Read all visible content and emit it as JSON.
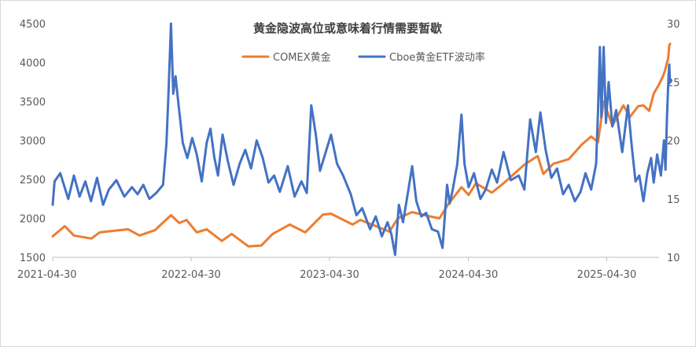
{
  "chart_data": {
    "type": "line",
    "title": "黄金隐波高位或意味着行情需要暂歇",
    "xlabel": "",
    "ylabel": "",
    "x_range": [
      "2021-04-30",
      "2025-09-15"
    ],
    "x_tick_labels": [
      "2021-04-30",
      "2022-04-30",
      "2023-04-30",
      "2024-04-30",
      "2025-04-30"
    ],
    "y_left": {
      "min": 1500,
      "max": 4500,
      "ticks": [
        1500,
        2000,
        2500,
        3000,
        3500,
        4000,
        4500
      ]
    },
    "y_right": {
      "min": 10,
      "max": 30,
      "ticks": [
        10,
        15,
        20,
        25,
        30
      ]
    },
    "grid": false,
    "legend_position": "top-center",
    "series": [
      {
        "name": "COMEX黄金",
        "axis": "left",
        "color": "#ED7D31",
        "points": [
          [
            "2021-04-30",
            1770
          ],
          [
            "2021-06-01",
            1900
          ],
          [
            "2021-06-25",
            1780
          ],
          [
            "2021-08-10",
            1740
          ],
          [
            "2021-09-01",
            1820
          ],
          [
            "2021-11-15",
            1860
          ],
          [
            "2021-12-15",
            1780
          ],
          [
            "2022-01-25",
            1850
          ],
          [
            "2022-03-08",
            2040
          ],
          [
            "2022-03-30",
            1940
          ],
          [
            "2022-04-18",
            1980
          ],
          [
            "2022-05-15",
            1820
          ],
          [
            "2022-06-10",
            1860
          ],
          [
            "2022-07-20",
            1710
          ],
          [
            "2022-08-15",
            1800
          ],
          [
            "2022-09-28",
            1640
          ],
          [
            "2022-11-01",
            1650
          ],
          [
            "2022-12-01",
            1800
          ],
          [
            "2023-01-15",
            1920
          ],
          [
            "2023-02-25",
            1820
          ],
          [
            "2023-04-13",
            2050
          ],
          [
            "2023-05-04",
            2060
          ],
          [
            "2023-06-30",
            1920
          ],
          [
            "2023-07-20",
            1980
          ],
          [
            "2023-08-20",
            1920
          ],
          [
            "2023-10-05",
            1830
          ],
          [
            "2023-10-27",
            2000
          ],
          [
            "2023-12-04",
            2080
          ],
          [
            "2024-01-15",
            2030
          ],
          [
            "2024-02-14",
            2000
          ],
          [
            "2024-03-08",
            2180
          ],
          [
            "2024-04-12",
            2400
          ],
          [
            "2024-05-01",
            2300
          ],
          [
            "2024-05-20",
            2450
          ],
          [
            "2024-07-01",
            2330
          ],
          [
            "2024-08-01",
            2450
          ],
          [
            "2024-09-25",
            2690
          ],
          [
            "2024-10-30",
            2800
          ],
          [
            "2024-11-14",
            2570
          ],
          [
            "2024-12-10",
            2700
          ],
          [
            "2025-01-20",
            2760
          ],
          [
            "2025-02-24",
            2950
          ],
          [
            "2025-03-20",
            3050
          ],
          [
            "2025-04-07",
            2980
          ],
          [
            "2025-04-22",
            3500
          ],
          [
            "2025-05-15",
            3190
          ],
          [
            "2025-06-13",
            3450
          ],
          [
            "2025-06-30",
            3300
          ],
          [
            "2025-07-22",
            3440
          ],
          [
            "2025-08-05",
            3450
          ],
          [
            "2025-08-20",
            3380
          ],
          [
            "2025-09-01",
            3600
          ],
          [
            "2025-09-15",
            3720
          ],
          [
            "2025-09-25",
            3820
          ],
          [
            "2025-10-01",
            3900
          ],
          [
            "2025-10-06",
            4000
          ],
          [
            "2025-10-09",
            4050
          ],
          [
            "2025-10-12",
            4220
          ],
          [
            "2025-10-14",
            4240
          ]
        ]
      },
      {
        "name": "Cboe黄金ETF波动率",
        "axis": "right",
        "color": "#4472C4",
        "points": [
          [
            "2021-04-30",
            14.5
          ],
          [
            "2021-05-05",
            16.5
          ],
          [
            "2021-05-20",
            17.2
          ],
          [
            "2021-06-10",
            15.0
          ],
          [
            "2021-06-25",
            17.0
          ],
          [
            "2021-07-10",
            15.2
          ],
          [
            "2021-07-25",
            16.5
          ],
          [
            "2021-08-09",
            14.8
          ],
          [
            "2021-08-25",
            16.8
          ],
          [
            "2021-09-10",
            14.5
          ],
          [
            "2021-09-25",
            15.8
          ],
          [
            "2021-10-15",
            16.6
          ],
          [
            "2021-11-05",
            15.2
          ],
          [
            "2021-11-25",
            16.0
          ],
          [
            "2021-12-10",
            15.4
          ],
          [
            "2021-12-25",
            16.2
          ],
          [
            "2022-01-10",
            15.0
          ],
          [
            "2022-01-28",
            15.5
          ],
          [
            "2022-02-15",
            16.2
          ],
          [
            "2022-02-24",
            19.8
          ],
          [
            "2022-03-02",
            24.5
          ],
          [
            "2022-03-08",
            30.0
          ],
          [
            "2022-03-14",
            24.0
          ],
          [
            "2022-03-20",
            25.5
          ],
          [
            "2022-03-28",
            23.0
          ],
          [
            "2022-04-08",
            19.8
          ],
          [
            "2022-04-20",
            18.5
          ],
          [
            "2022-05-03",
            20.2
          ],
          [
            "2022-05-15",
            18.8
          ],
          [
            "2022-05-28",
            16.5
          ],
          [
            "2022-06-10",
            19.8
          ],
          [
            "2022-06-20",
            21.0
          ],
          [
            "2022-06-30",
            18.6
          ],
          [
            "2022-07-10",
            17.0
          ],
          [
            "2022-07-22",
            20.5
          ],
          [
            "2022-08-05",
            18.2
          ],
          [
            "2022-08-20",
            16.2
          ],
          [
            "2022-09-05",
            18.0
          ],
          [
            "2022-09-20",
            19.2
          ],
          [
            "2022-10-05",
            17.6
          ],
          [
            "2022-10-20",
            20.0
          ],
          [
            "2022-11-05",
            18.5
          ],
          [
            "2022-11-20",
            16.4
          ],
          [
            "2022-12-05",
            17.0
          ],
          [
            "2022-12-20",
            15.6
          ],
          [
            "2023-01-10",
            17.8
          ],
          [
            "2023-01-28",
            15.2
          ],
          [
            "2023-02-15",
            16.5
          ],
          [
            "2023-03-01",
            15.5
          ],
          [
            "2023-03-13",
            23.0
          ],
          [
            "2023-03-25",
            20.5
          ],
          [
            "2023-04-05",
            17.4
          ],
          [
            "2023-04-20",
            19.0
          ],
          [
            "2023-05-04",
            20.5
          ],
          [
            "2023-05-20",
            18.0
          ],
          [
            "2023-06-05",
            17.0
          ],
          [
            "2023-06-25",
            15.4
          ],
          [
            "2023-07-10",
            13.6
          ],
          [
            "2023-07-25",
            14.2
          ],
          [
            "2023-08-15",
            12.4
          ],
          [
            "2023-08-30",
            13.5
          ],
          [
            "2023-09-15",
            11.8
          ],
          [
            "2023-09-30",
            13.0
          ],
          [
            "2023-10-10",
            12.0
          ],
          [
            "2023-10-20",
            10.2
          ],
          [
            "2023-10-30",
            14.5
          ],
          [
            "2023-11-10",
            13.0
          ],
          [
            "2023-11-20",
            15.0
          ],
          [
            "2023-12-04",
            17.8
          ],
          [
            "2023-12-15",
            14.8
          ],
          [
            "2023-12-28",
            13.5
          ],
          [
            "2024-01-10",
            13.8
          ],
          [
            "2024-01-25",
            12.4
          ],
          [
            "2024-02-10",
            12.2
          ],
          [
            "2024-02-22",
            10.8
          ],
          [
            "2024-03-05",
            16.2
          ],
          [
            "2024-03-12",
            14.6
          ],
          [
            "2024-03-20",
            15.8
          ],
          [
            "2024-04-01",
            18.0
          ],
          [
            "2024-04-12",
            22.2
          ],
          [
            "2024-04-20",
            18.0
          ],
          [
            "2024-05-01",
            16.0
          ],
          [
            "2024-05-15",
            17.2
          ],
          [
            "2024-06-01",
            15.0
          ],
          [
            "2024-06-15",
            15.8
          ],
          [
            "2024-07-01",
            17.5
          ],
          [
            "2024-07-15",
            16.4
          ],
          [
            "2024-08-01",
            19.0
          ],
          [
            "2024-08-20",
            16.6
          ],
          [
            "2024-09-10",
            17.0
          ],
          [
            "2024-09-25",
            15.8
          ],
          [
            "2024-10-10",
            21.8
          ],
          [
            "2024-10-25",
            19.0
          ],
          [
            "2024-11-06",
            22.4
          ],
          [
            "2024-11-20",
            19.2
          ],
          [
            "2024-12-05",
            16.8
          ],
          [
            "2024-12-20",
            17.6
          ],
          [
            "2025-01-05",
            15.4
          ],
          [
            "2025-01-20",
            16.2
          ],
          [
            "2025-02-05",
            14.8
          ],
          [
            "2025-02-20",
            15.6
          ],
          [
            "2025-03-05",
            17.2
          ],
          [
            "2025-03-20",
            15.8
          ],
          [
            "2025-04-02",
            18.0
          ],
          [
            "2025-04-07",
            22.5
          ],
          [
            "2025-04-12",
            28.0
          ],
          [
            "2025-04-16",
            22.0
          ],
          [
            "2025-04-22",
            28.0
          ],
          [
            "2025-04-28",
            21.5
          ],
          [
            "2025-05-05",
            25.0
          ],
          [
            "2025-05-15",
            21.2
          ],
          [
            "2025-05-25",
            22.6
          ],
          [
            "2025-06-10",
            19.0
          ],
          [
            "2025-06-25",
            23.0
          ],
          [
            "2025-07-05",
            19.5
          ],
          [
            "2025-07-15",
            16.5
          ],
          [
            "2025-07-25",
            17.0
          ],
          [
            "2025-08-05",
            14.8
          ],
          [
            "2025-08-15",
            17.2
          ],
          [
            "2025-08-25",
            18.5
          ],
          [
            "2025-09-01",
            16.4
          ],
          [
            "2025-09-10",
            18.8
          ],
          [
            "2025-09-20",
            17.0
          ],
          [
            "2025-09-28",
            20.0
          ],
          [
            "2025-10-02",
            17.5
          ],
          [
            "2025-10-06",
            22.0
          ],
          [
            "2025-10-10",
            25.5
          ],
          [
            "2025-10-12",
            26.5
          ],
          [
            "2025-10-14",
            25.0
          ]
        ]
      }
    ]
  }
}
